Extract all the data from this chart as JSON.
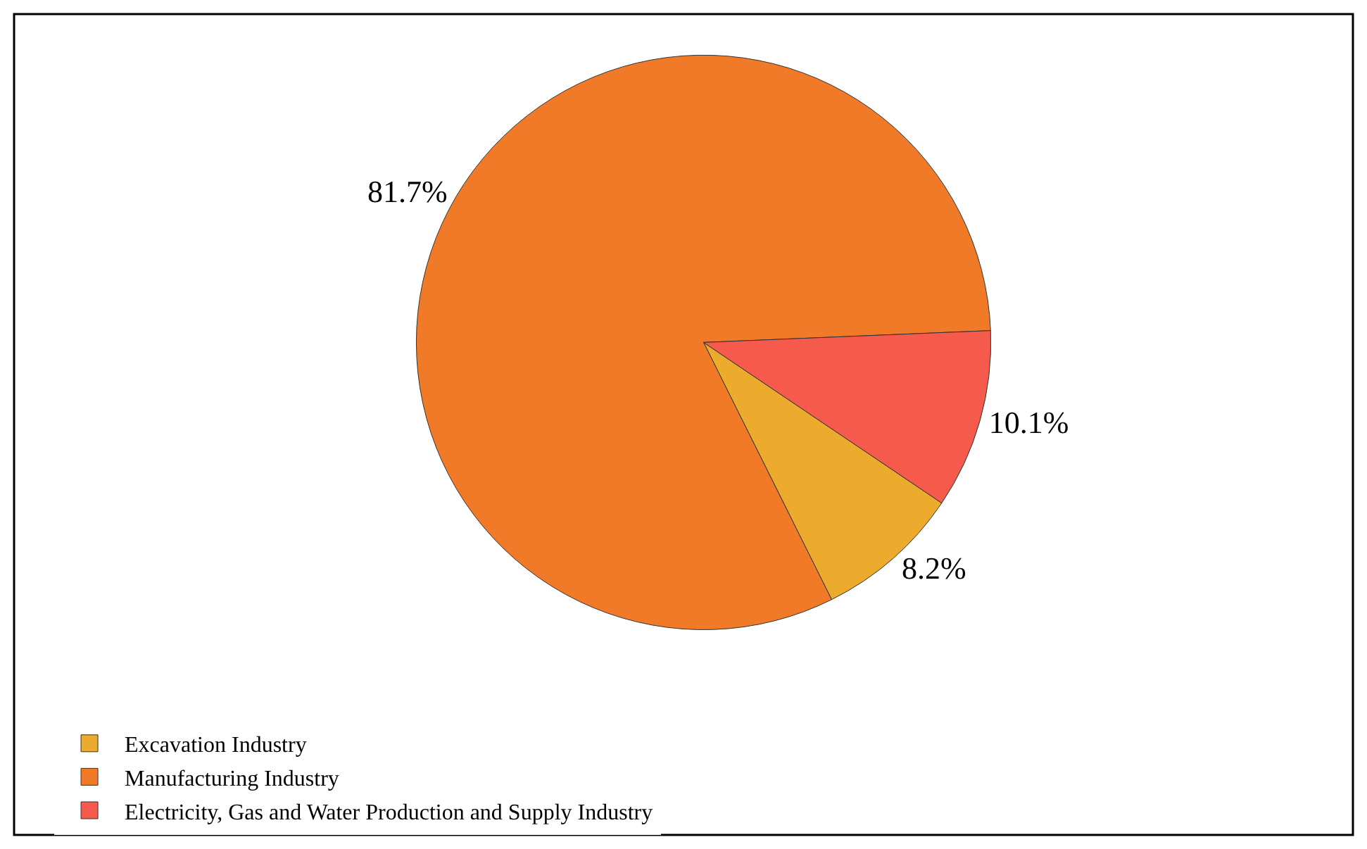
{
  "chart_data": {
    "type": "pie",
    "categories": [
      "Excavation Industry",
      "Manufacturing Industry",
      "Electricity, Gas and Water Production and Supply Industry"
    ],
    "values": [
      8.2,
      81.7,
      10.1
    ],
    "value_labels": [
      "8.2%",
      "81.7%",
      "10.1%"
    ],
    "colors": [
      "#ecab2c",
      "#f07a28",
      "#f65a4c"
    ],
    "legend": "bottom left"
  }
}
